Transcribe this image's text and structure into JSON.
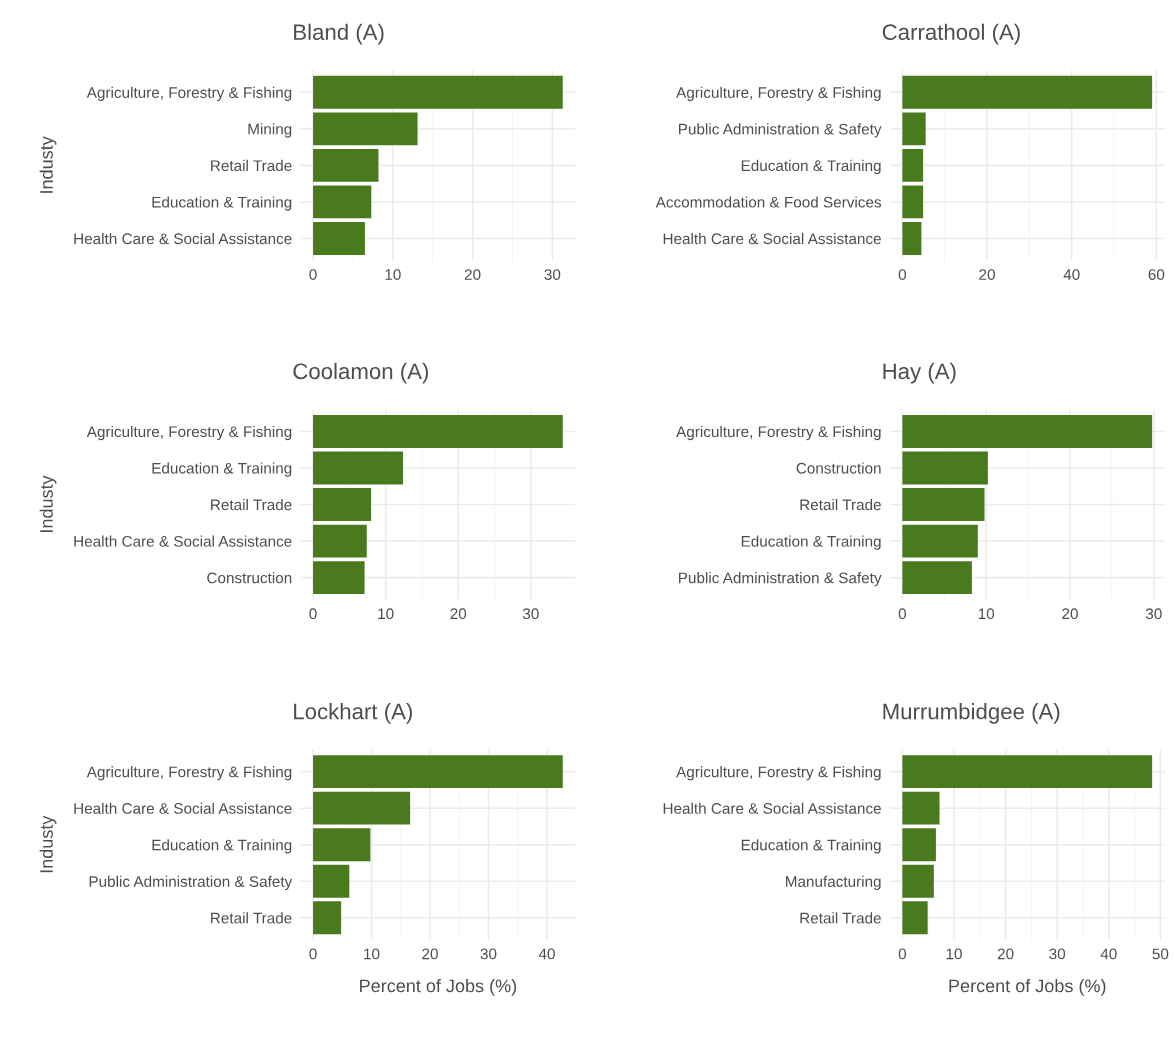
{
  "chart_data": [
    {
      "type": "bar",
      "orientation": "horizontal",
      "title": "Bland (A)",
      "ylabel": "Industy",
      "categories": [
        "Agriculture, Forestry & Fishing",
        "Mining",
        "Retail Trade",
        "Education & Training",
        "Health Care & Social Assistance"
      ],
      "values": [
        31.3,
        13.1,
        8.2,
        7.3,
        6.5
      ],
      "color": "#4a7a1e",
      "xlim": [
        -1.57,
        32.87
      ],
      "xticks": [
        0,
        10,
        20,
        30
      ],
      "grid": true
    },
    {
      "type": "bar",
      "orientation": "horizontal",
      "title": "Carrathool (A)",
      "categories": [
        "Agriculture, Forestry & Fishing",
        "Public Administration & Safety",
        "Education & Training",
        "Accommodation & Food Services",
        "Health Care & Social Assistance"
      ],
      "values": [
        59.0,
        5.5,
        4.9,
        4.9,
        4.5
      ],
      "color": "#4a7a1e",
      "xlim": [
        -2.95,
        61.95
      ],
      "xticks": [
        0,
        20,
        40,
        60
      ],
      "grid": true
    },
    {
      "type": "bar",
      "orientation": "horizontal",
      "title": "Coolamon (A)",
      "ylabel": "Industy",
      "categories": [
        "Agriculture, Forestry & Fishing",
        "Education & Training",
        "Retail Trade",
        "Health Care & Social Assistance",
        "Construction"
      ],
      "values": [
        34.4,
        12.4,
        8.0,
        7.4,
        7.1
      ],
      "color": "#4a7a1e",
      "xlim": [
        -1.72,
        36.12
      ],
      "xticks": [
        0,
        10,
        20,
        30
      ],
      "grid": true
    },
    {
      "type": "bar",
      "orientation": "horizontal",
      "title": "Hay (A)",
      "categories": [
        "Agriculture, Forestry & Fishing",
        "Construction",
        "Retail Trade",
        "Education & Training",
        "Public Administration & Safety"
      ],
      "values": [
        29.8,
        10.2,
        9.8,
        9.0,
        8.3
      ],
      "color": "#4a7a1e",
      "xlim": [
        -1.49,
        31.29
      ],
      "xticks": [
        0,
        10,
        20,
        30
      ],
      "grid": true
    },
    {
      "type": "bar",
      "orientation": "horizontal",
      "title": "Lockhart (A)",
      "ylabel": "Industy",
      "xlabel": "Percent of Jobs (%)",
      "categories": [
        "Agriculture, Forestry & Fishing",
        "Health Care & Social Assistance",
        "Education & Training",
        "Public Administration & Safety",
        "Retail Trade"
      ],
      "values": [
        42.7,
        16.6,
        9.8,
        6.2,
        4.8
      ],
      "color": "#4a7a1e",
      "xlim": [
        -2.14,
        44.84
      ],
      "xticks": [
        0,
        10,
        20,
        30,
        40
      ],
      "grid": true
    },
    {
      "type": "bar",
      "orientation": "horizontal",
      "title": "Murrumbidgee (A)",
      "xlabel": "Percent of Jobs (%)",
      "categories": [
        "Agriculture, Forestry & Fishing",
        "Health Care & Social Assistance",
        "Education & Training",
        "Manufacturing",
        "Retail Trade"
      ],
      "values": [
        48.4,
        7.2,
        6.5,
        6.1,
        4.9
      ],
      "color": "#4a7a1e",
      "xlim": [
        -2.42,
        50.82
      ],
      "xticks": [
        0,
        10,
        20,
        30,
        40,
        50
      ],
      "grid": true
    }
  ]
}
